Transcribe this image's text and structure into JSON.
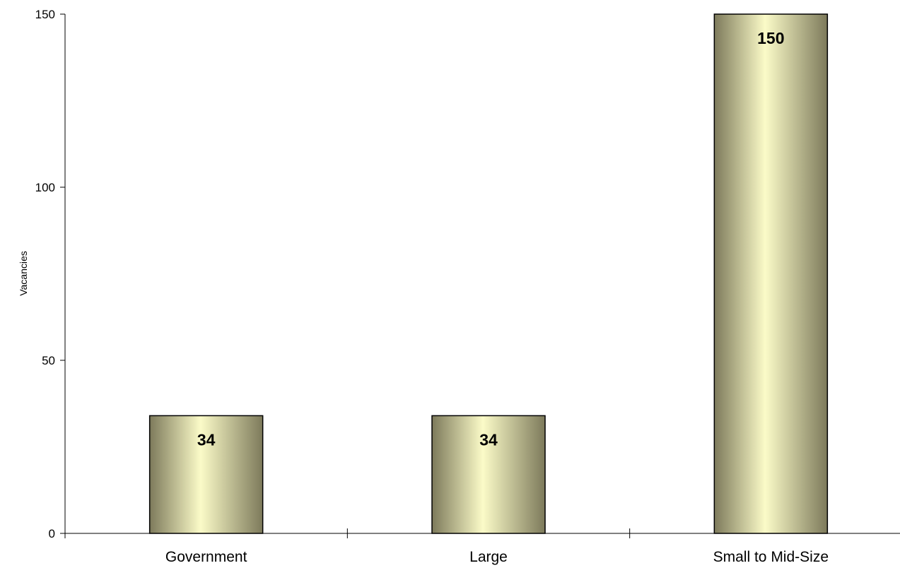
{
  "chart_data": {
    "type": "bar",
    "title": "",
    "xlabel": "",
    "ylabel": "Vacancies",
    "categories": [
      "Government",
      "Large",
      "Small to Mid-Size"
    ],
    "values": [
      34,
      34,
      150
    ],
    "data_labels": [
      "34",
      "34",
      "150"
    ],
    "ylim": [
      0,
      150
    ],
    "yticks": [
      0,
      50,
      100,
      150
    ],
    "ytick_labels": [
      "0",
      "50",
      "100",
      "150"
    ],
    "grid": false,
    "legend": "none",
    "bar_colors": {
      "edge": "#7d7a5b",
      "highlight": "#fbfbc8",
      "outline": "#000000"
    }
  }
}
